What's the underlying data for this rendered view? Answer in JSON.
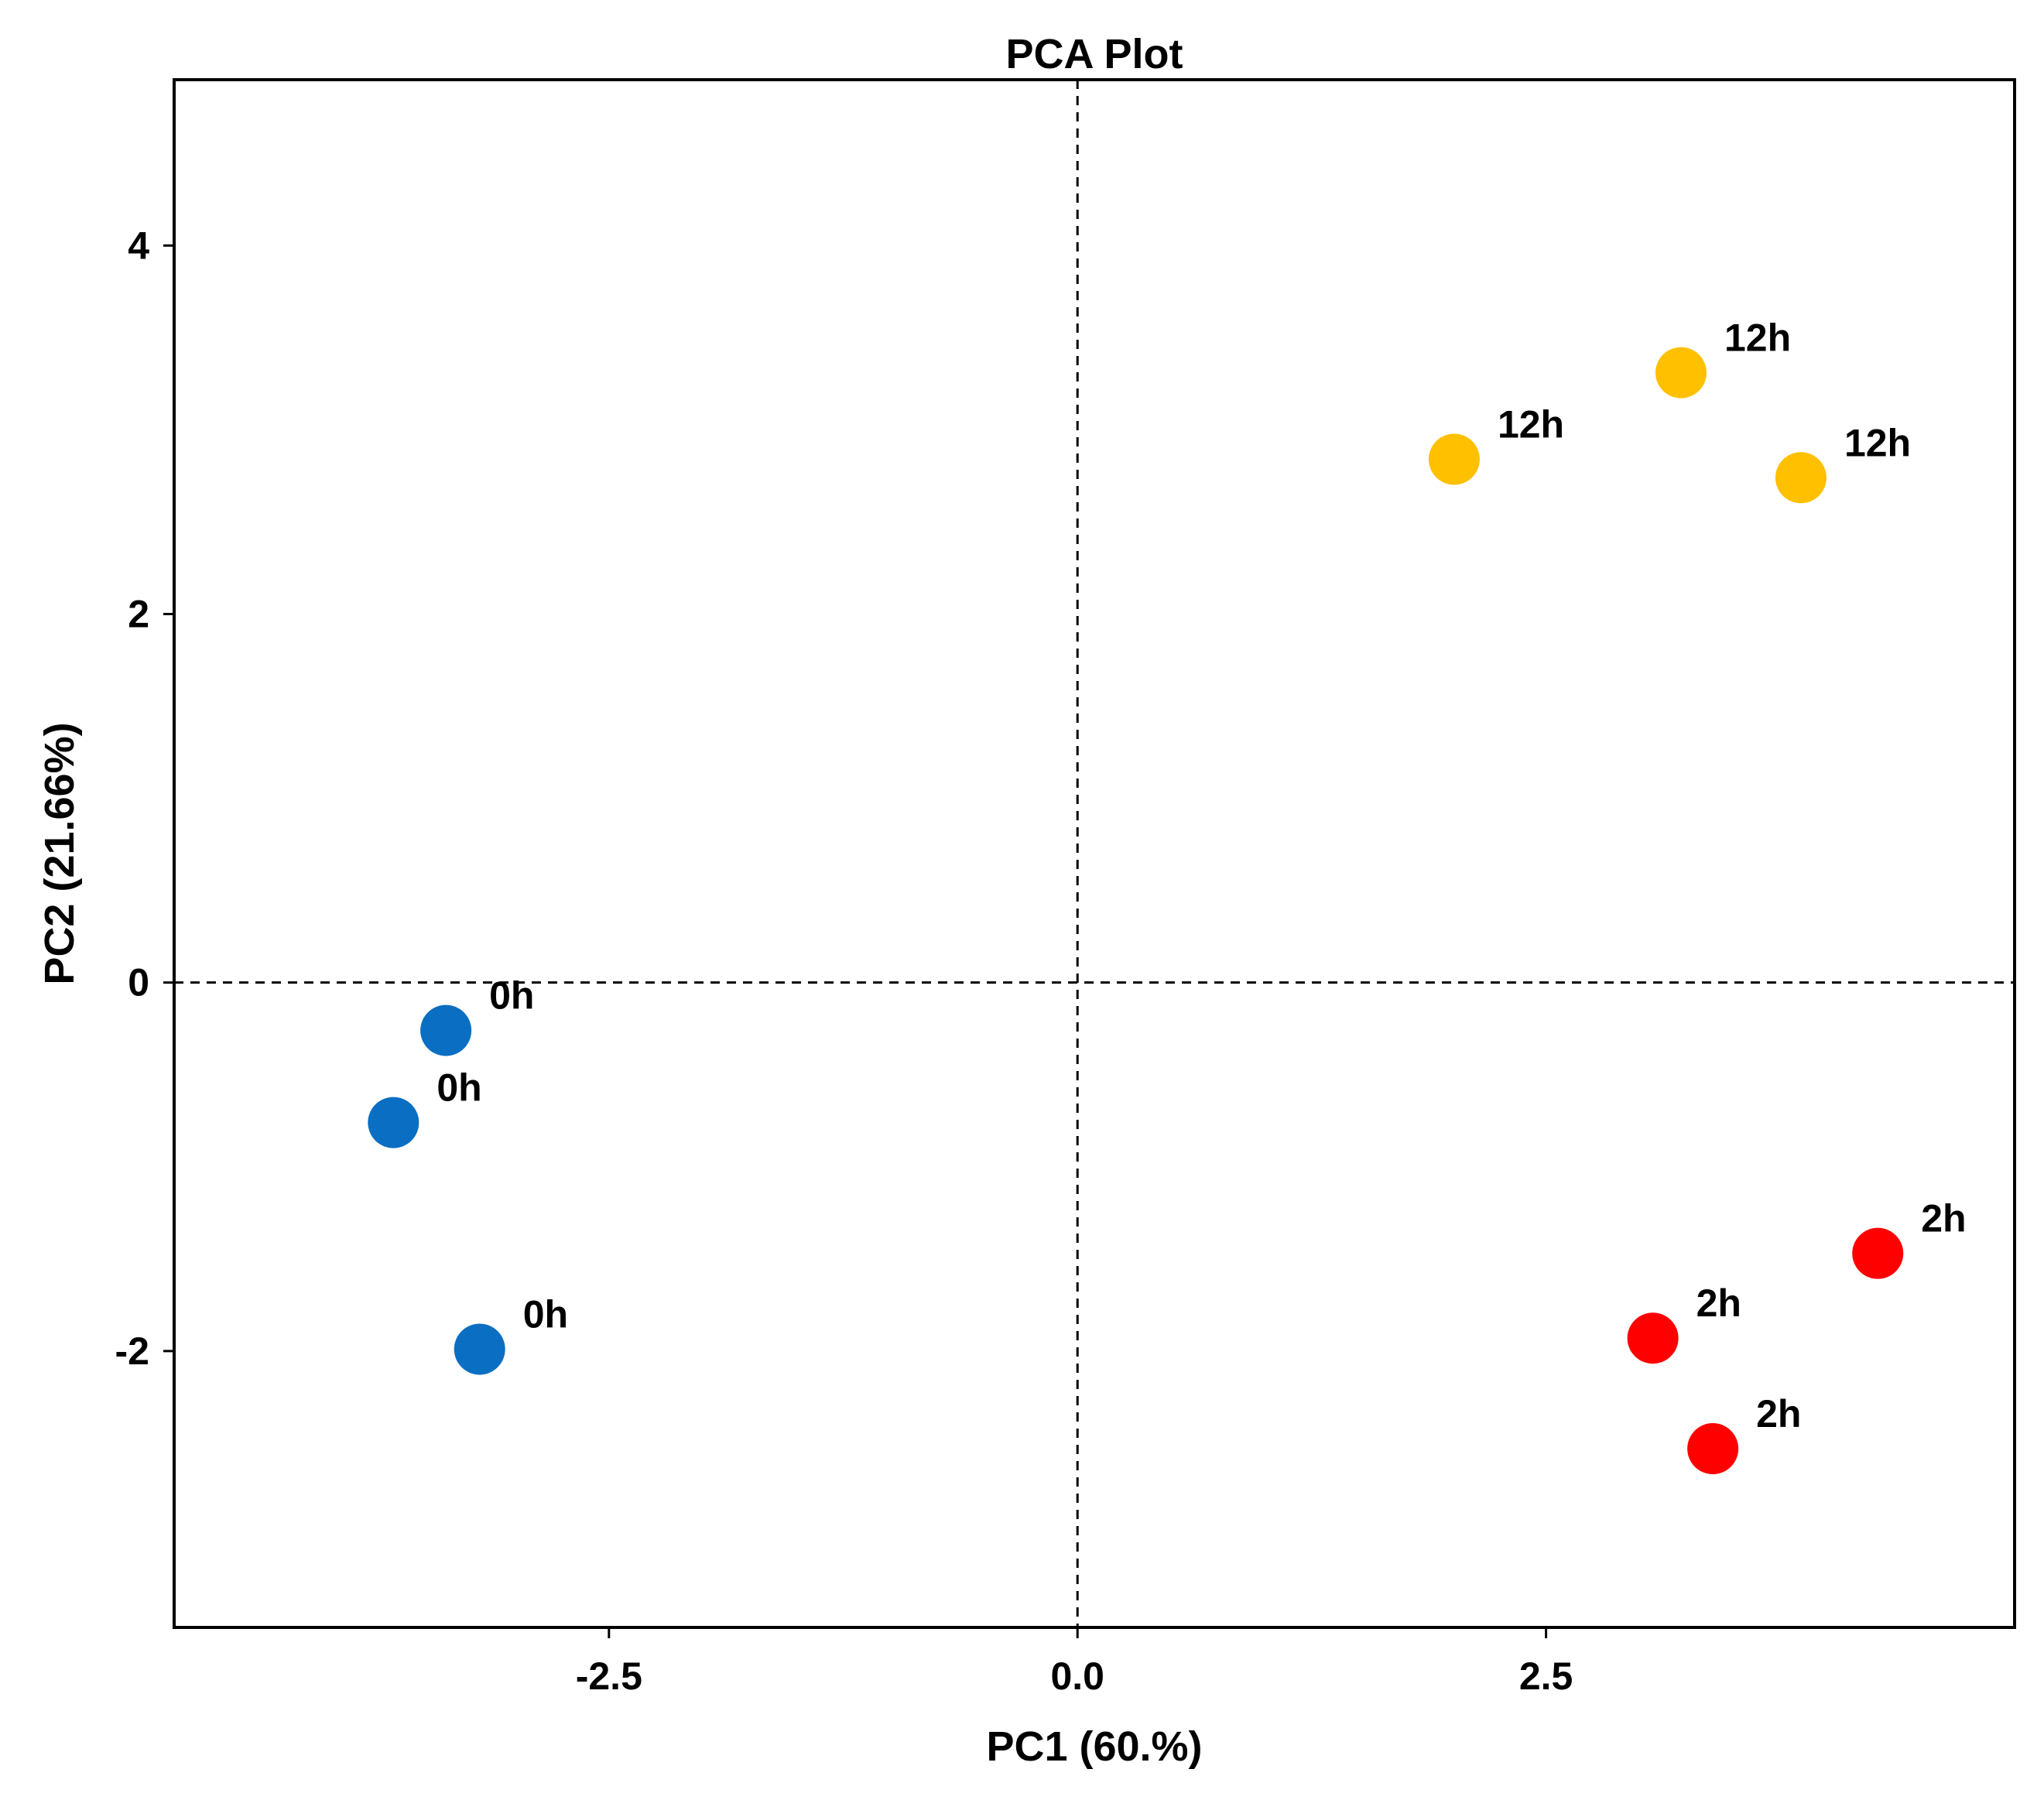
{
  "chart_data": {
    "type": "scatter",
    "title": "PCA Plot",
    "xlabel": "PC1 (60.%)",
    "ylabel": "PC2 (21.66%)",
    "xlim": [
      -4.82,
      5.0
    ],
    "ylim": [
      -3.5,
      4.9
    ],
    "xticks": [
      -2.5,
      0.0,
      2.5
    ],
    "xtick_labels": [
      "-2.5",
      "0.0",
      "2.5"
    ],
    "yticks": [
      -2,
      0,
      2,
      4
    ],
    "ytick_labels": [
      "-2",
      "0",
      "2",
      "4"
    ],
    "reference_lines": {
      "x": 0,
      "y": 0,
      "style": "dashed"
    },
    "grid": false,
    "legend": "none",
    "series": [
      {
        "name": "0h",
        "color": "#0a6fc2",
        "points": [
          {
            "x": -3.37,
            "y": -0.26,
            "label": "0h"
          },
          {
            "x": -3.65,
            "y": -0.76,
            "label": "0h"
          },
          {
            "x": -3.19,
            "y": -1.99,
            "label": "0h"
          }
        ]
      },
      {
        "name": "2h",
        "color": "#ff0000",
        "points": [
          {
            "x": 4.27,
            "y": -1.47,
            "label": "2h"
          },
          {
            "x": 3.07,
            "y": -1.93,
            "label": "2h"
          },
          {
            "x": 3.39,
            "y": -2.53,
            "label": "2h"
          }
        ]
      },
      {
        "name": "12h",
        "color": "#ffc000",
        "points": [
          {
            "x": 3.22,
            "y": 3.31,
            "label": "12h"
          },
          {
            "x": 2.01,
            "y": 2.84,
            "label": "12h"
          },
          {
            "x": 3.86,
            "y": 2.74,
            "label": "12h"
          }
        ]
      }
    ]
  }
}
